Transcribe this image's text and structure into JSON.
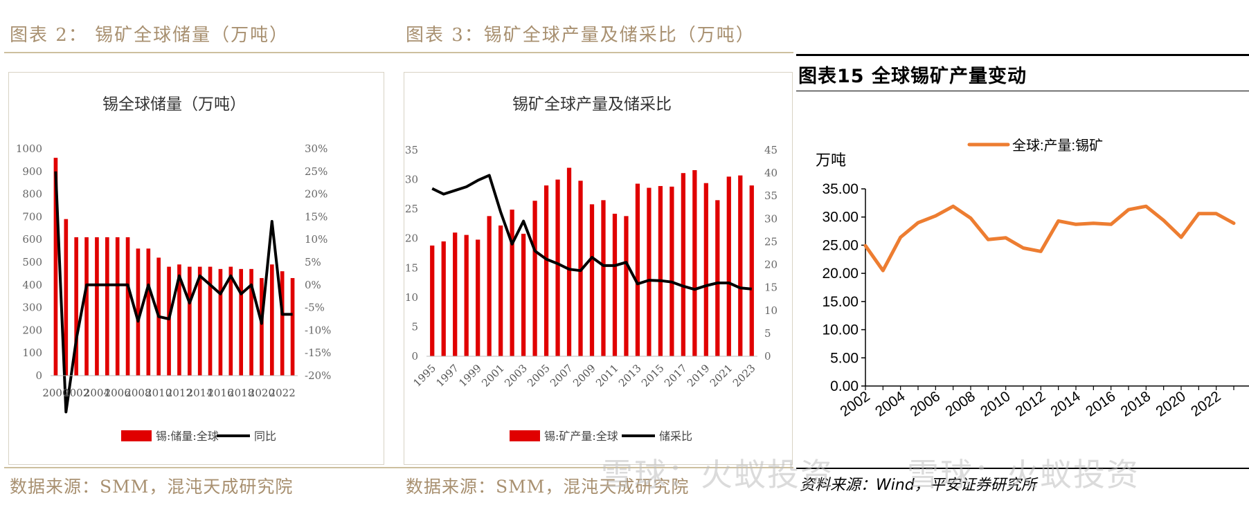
{
  "panel_left": {
    "header": "图表 2： 锡矿全球储量（万吨）",
    "source": "数据来源：SMM，混沌天成研究院"
  },
  "panel_mid": {
    "header": "图表 3：锡矿全球产量及储采比（万吨）",
    "source": "数据来源：SMM，混沌天成研究院"
  },
  "panel_right": {
    "header": "图表15    全球锡矿产量变动",
    "source": "资料来源：Wind，平安证券研究所"
  },
  "watermarks": [
    "雪球：火蚁投资",
    "雪球：火蚁投资"
  ],
  "colors": {
    "red": "#e00000",
    "black": "#000000",
    "orange": "#ed7d31",
    "header_gold": "#a89070"
  },
  "chart_data": [
    {
      "type": "bar",
      "title": "锡全球储量（万吨）",
      "categories": [
        "2000",
        "2001",
        "2002",
        "2003",
        "2004",
        "2005",
        "2006",
        "2007",
        "2008",
        "2009",
        "2010",
        "2011",
        "2012",
        "2013",
        "2014",
        "2015",
        "2016",
        "2017",
        "2018",
        "2019",
        "2020",
        "2021",
        "2022",
        "2023"
      ],
      "x_tick_labels": [
        "2000",
        "2002",
        "2004",
        "2006",
        "2008",
        "2010",
        "2012",
        "2014",
        "2016",
        "2018",
        "2020",
        "2022"
      ],
      "series": [
        {
          "name": "锡:储量:全球",
          "type": "bar",
          "axis": "left",
          "color": "#e00000",
          "values": [
            960,
            690,
            610,
            610,
            610,
            610,
            610,
            610,
            560,
            560,
            520,
            480,
            490,
            480,
            480,
            480,
            470,
            480,
            470,
            470,
            430,
            490,
            460,
            430
          ]
        },
        {
          "name": "同比",
          "type": "line",
          "axis": "right",
          "color": "#000000",
          "values": [
            0.25,
            -0.28,
            -0.12,
            0.0,
            0.0,
            0.0,
            0.0,
            0.0,
            -0.08,
            0.0,
            -0.07,
            -0.075,
            0.02,
            -0.04,
            0.02,
            0.0,
            -0.02,
            0.02,
            -0.02,
            0.0,
            -0.085,
            0.14,
            -0.065,
            -0.065
          ]
        }
      ],
      "ylim": [
        0,
        1000
      ],
      "y_ticks": [
        "0",
        "100",
        "200",
        "300",
        "400",
        "500",
        "600",
        "700",
        "800",
        "900",
        "1000"
      ],
      "y2lim": [
        -0.2,
        0.3
      ],
      "y2_ticks": [
        "-20%",
        "-15%",
        "-10%",
        "-5%",
        "0%",
        "5%",
        "10%",
        "15%",
        "20%",
        "25%",
        "30%"
      ],
      "legend": "bottom"
    },
    {
      "type": "bar",
      "title": "锡矿全球产量及储采比",
      "categories": [
        "1995",
        "1996",
        "1997",
        "1998",
        "1999",
        "2000",
        "2001",
        "2002",
        "2003",
        "2004",
        "2005",
        "2006",
        "2007",
        "2008",
        "2009",
        "2010",
        "2011",
        "2012",
        "2013",
        "2014",
        "2015",
        "2016",
        "2017",
        "2018",
        "2019",
        "2020",
        "2021",
        "2022",
        "2023"
      ],
      "x_tick_labels": [
        "1995",
        "1997",
        "1999",
        "2001",
        "2003",
        "2005",
        "2007",
        "2009",
        "2011",
        "2013",
        "2015",
        "2017",
        "2019",
        "2021",
        "2023"
      ],
      "series": [
        {
          "name": "锡:矿产量:全球",
          "type": "bar",
          "axis": "left",
          "color": "#e00000",
          "values": [
            18.8,
            19.5,
            21.0,
            20.6,
            19.8,
            23.8,
            22.2,
            24.9,
            20.8,
            26.4,
            29.0,
            30.0,
            32.0,
            29.8,
            25.8,
            26.5,
            24.2,
            23.8,
            29.3,
            28.6,
            28.9,
            28.8,
            31.1,
            31.6,
            29.4,
            26.5,
            30.5,
            30.7,
            29.0
          ]
        },
        {
          "name": "储采比",
          "type": "line",
          "axis": "right",
          "color": "#000000",
          "values": [
            36.6,
            35.4,
            36.2,
            37.0,
            38.4,
            39.5,
            31.5,
            24.5,
            29.5,
            23.0,
            21.2,
            20.2,
            19.0,
            18.7,
            21.6,
            19.8,
            19.8,
            20.5,
            15.8,
            16.6,
            16.5,
            16.2,
            15.3,
            14.6,
            15.4,
            16.0,
            16.0,
            14.9,
            14.7
          ]
        }
      ],
      "ylim": [
        0,
        35
      ],
      "y_ticks": [
        "0",
        "5",
        "10",
        "15",
        "20",
        "25",
        "30",
        "35"
      ],
      "y2lim": [
        0,
        45
      ],
      "y2_ticks": [
        "0",
        "5",
        "10",
        "15",
        "20",
        "25",
        "30",
        "35",
        "40",
        "45"
      ],
      "legend": "bottom"
    },
    {
      "type": "line",
      "ylabel": "万吨",
      "x": [
        2002,
        2003,
        2004,
        2005,
        2006,
        2007,
        2008,
        2009,
        2010,
        2011,
        2012,
        2013,
        2014,
        2015,
        2016,
        2017,
        2018,
        2019,
        2020,
        2021,
        2022,
        2023
      ],
      "x_tick_labels": [
        "2002",
        "2004",
        "2006",
        "2008",
        "2010",
        "2012",
        "2014",
        "2016",
        "2018",
        "2020",
        "2022"
      ],
      "series": [
        {
          "name": "全球:产量:锡矿",
          "color": "#ed7d31",
          "values": [
            24.9,
            20.5,
            26.4,
            29.0,
            30.2,
            31.9,
            29.8,
            26.0,
            26.3,
            24.5,
            23.9,
            29.3,
            28.7,
            28.9,
            28.7,
            31.3,
            31.9,
            29.4,
            26.4,
            30.6,
            30.6,
            28.9
          ]
        }
      ],
      "ylim": [
        0,
        35
      ],
      "y_ticks": [
        "0.00",
        "5.00",
        "10.00",
        "15.00",
        "20.00",
        "25.00",
        "30.00",
        "35.00"
      ],
      "legend": "top"
    }
  ]
}
